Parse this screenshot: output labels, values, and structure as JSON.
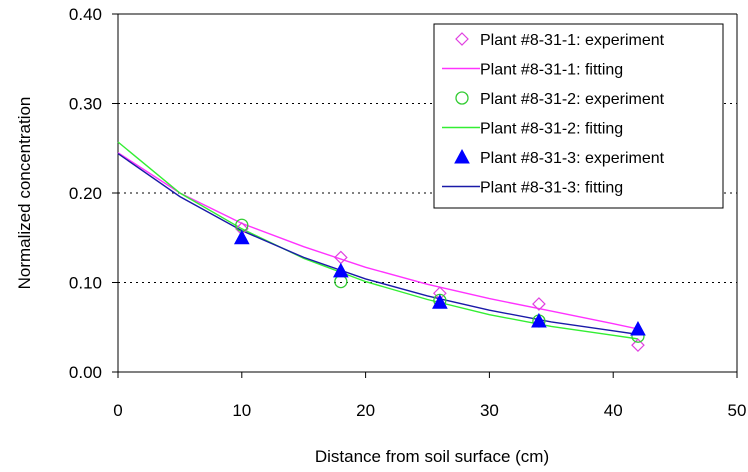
{
  "chart_data": {
    "type": "scatter",
    "title": "",
    "xlabel": "Distance from soil surface (cm)",
    "ylabel": "Normalized concentration",
    "xlim": [
      0,
      50
    ],
    "ylim": [
      0,
      0.4
    ],
    "x_ticks": [
      "0",
      "10",
      "20",
      "30",
      "40",
      "50"
    ],
    "y_ticks": [
      "0.00",
      "0.10",
      "0.20",
      "0.30",
      "0.40"
    ],
    "grid": "horizontal dotted",
    "legend_position": "top-right",
    "series": [
      {
        "name": "Plant #8-31-1: experiment",
        "kind": "points",
        "marker": "diamond-open",
        "color": "#e040e0",
        "x": [
          10,
          18,
          26,
          34,
          42
        ],
        "y": [
          0.16,
          0.128,
          0.088,
          0.076,
          0.03
        ]
      },
      {
        "name": "Plant #8-31-1: fitting",
        "kind": "line",
        "color": "#ff33ff",
        "x": [
          0,
          5,
          10,
          15,
          20,
          25,
          30,
          35,
          40,
          42
        ],
        "y": [
          0.245,
          0.2,
          0.166,
          0.14,
          0.117,
          0.098,
          0.082,
          0.068,
          0.054,
          0.048
        ]
      },
      {
        "name": "Plant #8-31-2: experiment",
        "kind": "points",
        "marker": "circle-open",
        "color": "#33cc33",
        "x": [
          10,
          18,
          26,
          34,
          42
        ],
        "y": [
          0.164,
          0.101,
          0.08,
          0.057,
          0.04
        ]
      },
      {
        "name": "Plant #8-31-2: fitting",
        "kind": "line",
        "color": "#33ee33",
        "x": [
          0,
          5,
          10,
          15,
          20,
          25,
          30,
          35,
          40,
          42
        ],
        "y": [
          0.257,
          0.2,
          0.16,
          0.127,
          0.101,
          0.081,
          0.064,
          0.051,
          0.041,
          0.037
        ]
      },
      {
        "name": "Plant #8-31-3: experiment",
        "kind": "points",
        "marker": "triangle-filled",
        "color": "#0000ff",
        "x": [
          10,
          18,
          26,
          34,
          42
        ],
        "y": [
          0.15,
          0.113,
          0.078,
          0.057,
          0.048
        ]
      },
      {
        "name": "Plant #8-31-3: fitting",
        "kind": "line",
        "color": "#1a1aa8",
        "x": [
          0,
          5,
          10,
          15,
          20,
          25,
          30,
          35,
          40,
          42
        ],
        "y": [
          0.244,
          0.196,
          0.158,
          0.128,
          0.104,
          0.085,
          0.069,
          0.056,
          0.046,
          0.042
        ]
      }
    ]
  }
}
